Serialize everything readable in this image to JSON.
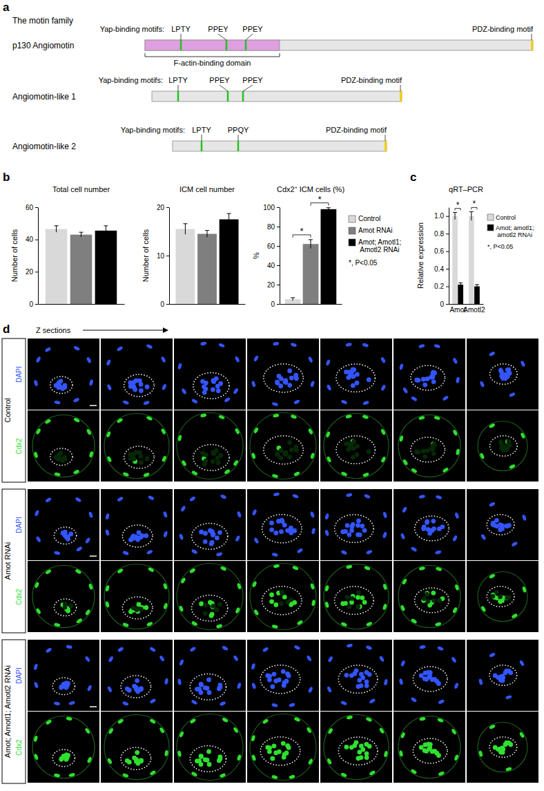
{
  "panel_labels": [
    "a",
    "b",
    "c",
    "d"
  ],
  "motif_diagram": {
    "title": "The motin family",
    "proteins": [
      {
        "name": "p130 Angiomotin",
        "motif_heading": "Yap-binding motifs:",
        "motifs": [
          "LPTY",
          "PPEY",
          "PPEY"
        ],
        "domain": "F-actin-binding domain",
        "end_motif": "PDZ-binding motif"
      },
      {
        "name": "Angiomotin-like 1",
        "motif_heading": "Yap-binding motifs:",
        "motifs": [
          "LPTY",
          "PPEY",
          "PPEY"
        ],
        "end_motif": "PDZ-binding motif"
      },
      {
        "name": "Angiomotin-like 2",
        "motif_heading": "Yap-binding motifs:",
        "motifs": [
          "LPTY",
          "PPQY"
        ],
        "end_motif": "PDZ-binding motif"
      }
    ]
  },
  "chart_data": [
    {
      "type": "bar",
      "title": "Total cell number",
      "y_label": "Number of cells",
      "categories": [
        null,
        null,
        null
      ],
      "values": [
        46.5,
        43,
        45.5
      ],
      "errors": [
        2,
        1.5,
        3
      ],
      "colors": [
        "#d9d9d9",
        "#7f7f7f",
        "#000000"
      ],
      "ylim": [
        0,
        60
      ],
      "yticks": [
        0,
        20,
        40,
        60
      ]
    },
    {
      "type": "bar",
      "title": "ICM cell number",
      "y_label": "Number of cells",
      "categories": [
        null,
        null,
        null
      ],
      "values": [
        15.5,
        14.5,
        17.5
      ],
      "errors": [
        1.1,
        0.7,
        1.2
      ],
      "colors": [
        "#d9d9d9",
        "#7f7f7f",
        "#000000"
      ],
      "ylim": [
        0,
        20
      ],
      "yticks": [
        0,
        10,
        20
      ]
    },
    {
      "type": "bar",
      "title": "Cdx2⁺ ICM cells (%)",
      "y_label": "%",
      "categories": [
        null,
        null,
        null
      ],
      "values": [
        5,
        62,
        98
      ],
      "errors": [
        1.5,
        4.5,
        1.5
      ],
      "colors": [
        "#d9d9d9",
        "#7f7f7f",
        "#000000"
      ],
      "ylim": [
        0,
        100
      ],
      "yticks": [
        0,
        20,
        40,
        60,
        80,
        100
      ],
      "annotations": [
        {
          "text": "*",
          "pair": [
            0,
            1
          ]
        },
        {
          "text": "*",
          "pair": [
            1,
            2
          ]
        }
      ]
    },
    {
      "type": "bar",
      "title": "qRT–PCR",
      "y_label": "Relative expression",
      "categories": [
        "Amot",
        "Amotl2"
      ],
      "series": [
        {
          "name": "Control",
          "color": "#d9d9d9",
          "values": [
            1,
            1
          ],
          "errors": [
            0.04,
            0.05
          ]
        },
        {
          "name": "Amot; amotl1; amotl2 RNAi",
          "color": "#000000",
          "values": [
            0.22,
            0.2
          ],
          "errors": [
            0.02,
            0.02
          ]
        }
      ],
      "ylim": [
        0,
        1.1
      ],
      "yticks": [
        0,
        0.2,
        0.4,
        0.6,
        0.8,
        {
          "value": 1,
          "label": "1.0"
        }
      ],
      "legend": "right",
      "annotations": [
        {
          "text": "*",
          "category": 0
        },
        {
          "text": "*",
          "category": 1
        }
      ],
      "note": "*, P<0.05"
    }
  ],
  "legend_b": {
    "entries": [
      {
        "name": "Control",
        "color": "#d9d9d9"
      },
      {
        "name": "Amot RNAi",
        "color": "#7f7f7f"
      },
      {
        "name": "Amot; Amotl1; Amotl2 RNAi",
        "color": "#000000"
      }
    ],
    "note": "*, P<0.05"
  },
  "images": {
    "axis_label": "Z sections",
    "groups": [
      {
        "name": "Control",
        "channels": [
          {
            "name": "DAPI",
            "color": "#3355ff"
          },
          {
            "name": "Cdx2",
            "color": "#2fe02f"
          }
        ]
      },
      {
        "name": "Amot RNAi",
        "channels": [
          {
            "name": "DAPI",
            "color": "#3355ff"
          },
          {
            "name": "Cdx2",
            "color": "#2fe02f"
          }
        ]
      },
      {
        "name": "Amot; Amotl1; Amotl2 RNAi",
        "channels": [
          {
            "name": "DAPI",
            "color": "#3355ff"
          },
          {
            "name": "Cdx2",
            "color": "#2fe02f"
          }
        ]
      }
    ]
  }
}
